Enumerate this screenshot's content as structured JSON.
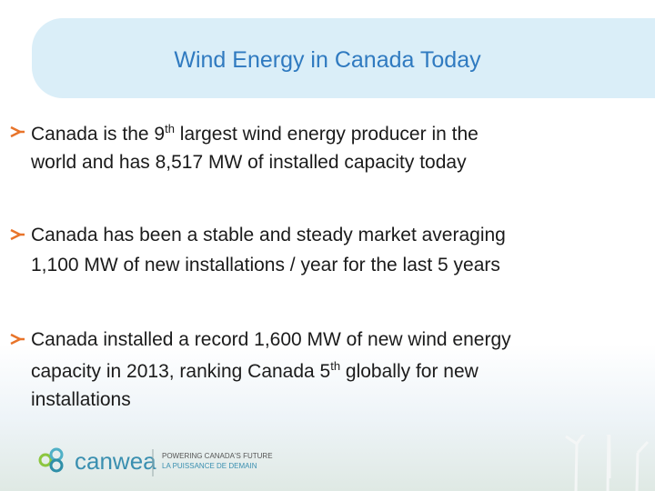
{
  "header": {
    "title": "Wind Energy in Canada Today"
  },
  "bullets": [
    {
      "lines": [
        [
          {
            "text": "Canada is the 9"
          },
          {
            "text": "th",
            "sup": true
          },
          {
            "text": " largest wind energy producer in the"
          }
        ],
        [
          {
            "text": "world and has 8,517 MW of installed capacity today"
          }
        ]
      ]
    },
    {
      "lines": [
        [
          {
            "text": "Canada has been a stable and steady market averaging"
          }
        ],
        [
          {
            "text": "1,100 MW of new installations / year for the last 5 years"
          }
        ]
      ]
    },
    {
      "lines": [
        [
          {
            "text": "Canada installed a record 1,600 MW of new wind energy"
          }
        ],
        [
          {
            "text": "capacity in 2013, ranking Canada 5"
          },
          {
            "text": "th",
            "sup": true
          },
          {
            "text": " globally for new"
          }
        ],
        [
          {
            "text": "installations"
          }
        ]
      ]
    }
  ],
  "footer": {
    "logo": "canwea",
    "tagline_en": "POWERING CANADA'S FUTURE",
    "tagline_fr": "LA PUISSANCE DE DEMAIN"
  }
}
